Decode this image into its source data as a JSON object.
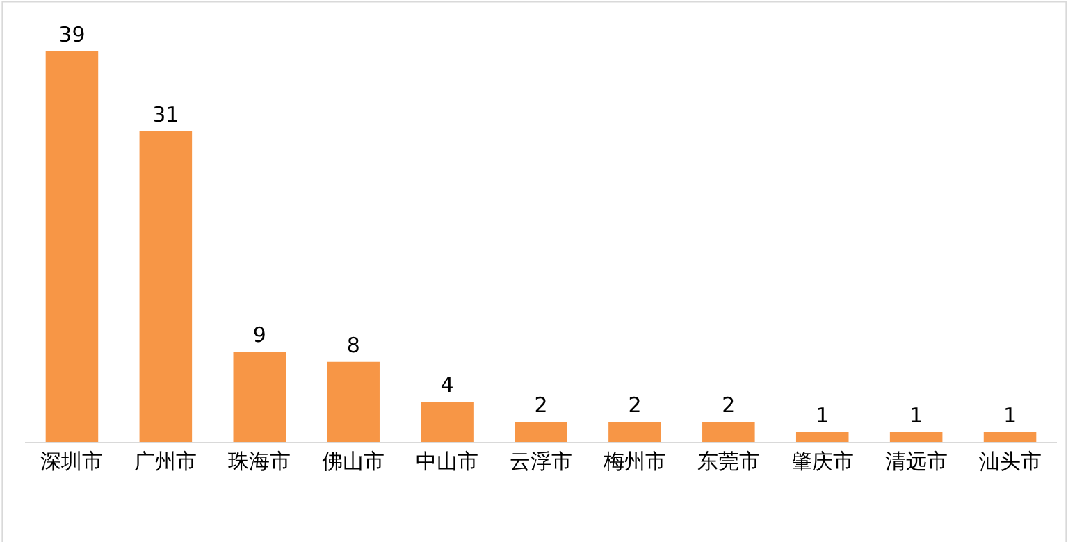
{
  "chart_data": {
    "type": "bar",
    "categories": [
      "深圳市",
      "广州市",
      "珠海市",
      "佛山市",
      "中山市",
      "云浮市",
      "梅州市",
      "东莞市",
      "肇庆市",
      "清远市",
      "汕头市"
    ],
    "values": [
      39,
      31,
      9,
      8,
      4,
      2,
      2,
      2,
      1,
      1,
      1
    ],
    "color": "#f79646",
    "data_labels": true
  }
}
